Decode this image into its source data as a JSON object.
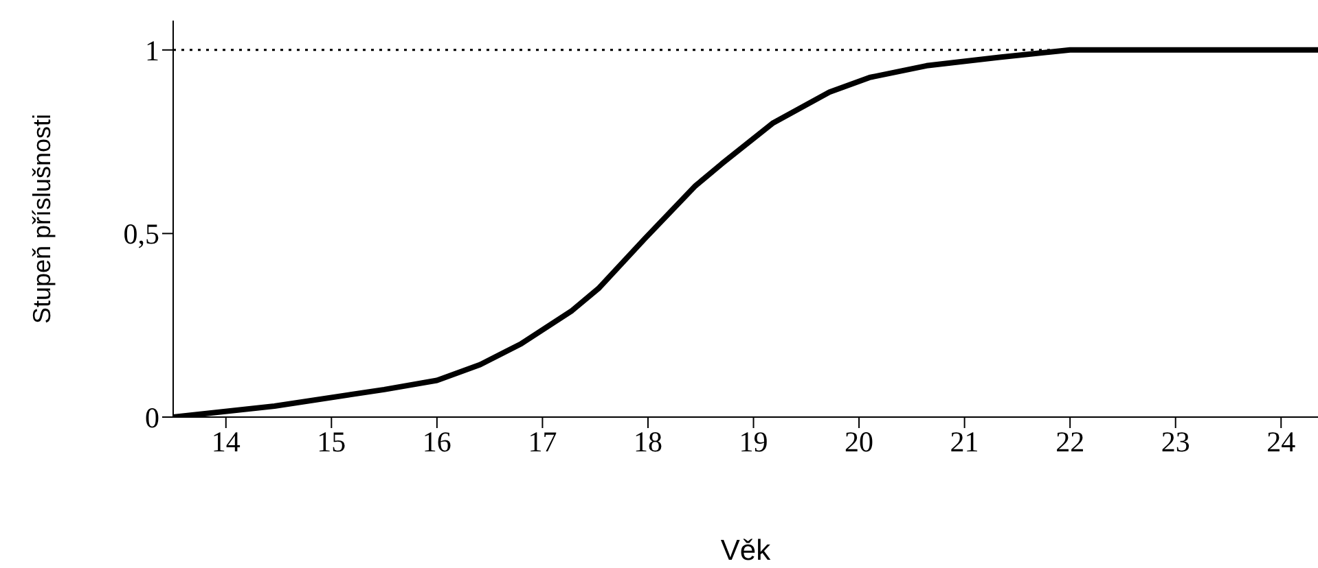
{
  "chart_data": {
    "type": "line",
    "xlabel": "Věk",
    "ylabel": "Stupeň příslušnosti",
    "x": [
      13.5,
      14.46,
      15.5,
      16,
      16.41,
      16.8,
      17.28,
      17.53,
      17.97,
      18.45,
      18.7,
      19.18,
      19.72,
      20.1,
      20.64,
      21.33,
      22,
      24.35
    ],
    "series": [
      {
        "color": "#000000",
        "values": [
          0,
          0.03,
          0.075,
          0.1,
          0.143,
          0.2,
          0.29,
          0.35,
          0.486,
          0.63,
          0.69,
          0.8,
          0.885,
          0.925,
          0.957,
          0.98,
          1,
          1
        ]
      }
    ],
    "xlim": [
      13.5,
      24.35
    ],
    "xticks": [
      14,
      15,
      16,
      17,
      18,
      19,
      20,
      21,
      22,
      23,
      24
    ],
    "ylim": [
      0,
      1.08
    ],
    "yticks": [
      0,
      {
        "value": 0.5,
        "label": "0,5"
      },
      1
    ],
    "ref_lines": [
      {
        "axis": "y",
        "value": 1,
        "color": "#000000",
        "line_style": "dotted"
      }
    ],
    "grid": false,
    "legend": false,
    "marker": "none",
    "line_style": "solid"
  }
}
